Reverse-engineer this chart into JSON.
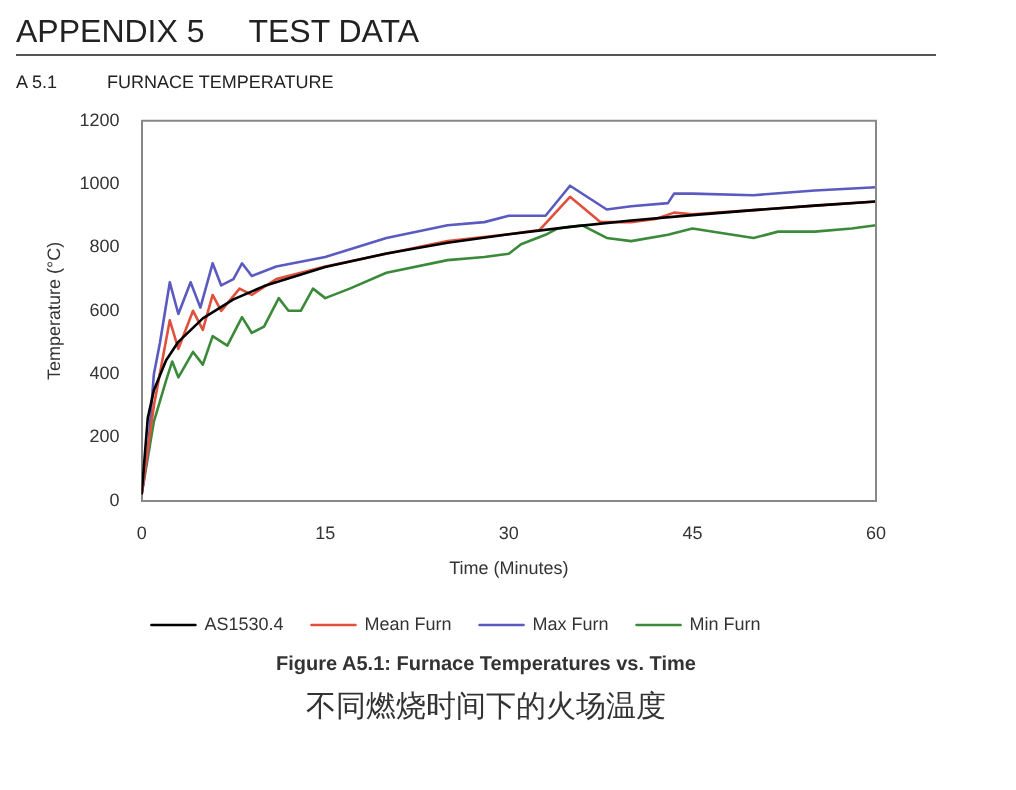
{
  "chart_data": {
    "type": "line",
    "title": "APPENDIX 5     TEST DATA",
    "subtitle": "A 5.1          FURNACE TEMPERATURE",
    "xlabel": "Time (Minutes)",
    "ylabel": "Temperature (°C)",
    "annotations": [
      "Figure A5.1: Furnace Temperatures vs. Time",
      "不同燃烧时间下的火场温度"
    ],
    "xlim": [
      0,
      60
    ],
    "xticks": [
      0,
      15,
      30,
      45,
      60
    ],
    "ylim": [
      0,
      1200
    ],
    "yticks": [
      0,
      200,
      400,
      600,
      800,
      1000,
      1200
    ],
    "grid": false,
    "legend": "bottom",
    "marker": "none",
    "line_style": "solid",
    "series": [
      {
        "name": "AS1530.4",
        "color": "#000000",
        "x": [
          0,
          0.5,
          1,
          2,
          3,
          5,
          7.5,
          10,
          15,
          20,
          25,
          30,
          35,
          40,
          45,
          50,
          55,
          60
        ],
        "values": [
          20,
          261,
          349,
          444,
          502,
          576,
          636,
          678,
          738,
          781,
          815,
          842,
          865,
          885,
          902,
          918,
          932,
          945
        ]
      },
      {
        "name": "Mean Furn",
        "color": "#e0503c",
        "x": [
          0,
          1,
          2.3,
          3,
          4.2,
          5,
          5.8,
          6.5,
          8,
          9,
          11,
          15,
          20,
          25,
          30,
          32.5,
          35,
          37.5,
          40,
          42,
          43.5,
          45,
          50,
          55,
          60
        ],
        "values": [
          20,
          300,
          570,
          480,
          600,
          540,
          650,
          600,
          670,
          650,
          700,
          740,
          780,
          820,
          842,
          855,
          960,
          880,
          880,
          890,
          910,
          905,
          918,
          932,
          945
        ]
      },
      {
        "name": "Max Furn",
        "color": "#5a5ac0",
        "x": [
          0,
          0.5,
          1,
          1.5,
          2.3,
          3,
          4,
          4.8,
          5.8,
          6.5,
          7.5,
          8.2,
          9,
          11,
          15,
          20,
          25,
          28,
          30,
          33,
          35,
          38,
          40,
          43,
          43.5,
          45,
          50,
          55,
          60
        ],
        "values": [
          20,
          150,
          400,
          500,
          690,
          590,
          690,
          610,
          750,
          680,
          700,
          750,
          710,
          740,
          770,
          830,
          870,
          880,
          900,
          900,
          995,
          920,
          930,
          940,
          970,
          970,
          965,
          980,
          990
        ]
      },
      {
        "name": "Min Furn",
        "color": "#3a8a3a",
        "x": [
          0,
          1,
          2,
          2.5,
          3,
          4.2,
          5,
          5.8,
          7,
          8.2,
          9,
          10,
          11.2,
          12,
          13,
          14,
          15,
          17,
          20,
          25,
          28,
          30,
          31,
          33,
          34,
          36,
          38,
          40,
          43,
          45,
          50,
          52,
          55,
          58,
          60
        ],
        "values": [
          20,
          250,
          380,
          440,
          390,
          470,
          430,
          520,
          490,
          580,
          530,
          550,
          640,
          600,
          600,
          670,
          640,
          670,
          720,
          760,
          770,
          780,
          810,
          840,
          860,
          870,
          830,
          820,
          840,
          860,
          830,
          850,
          850,
          860,
          870
        ]
      }
    ]
  }
}
